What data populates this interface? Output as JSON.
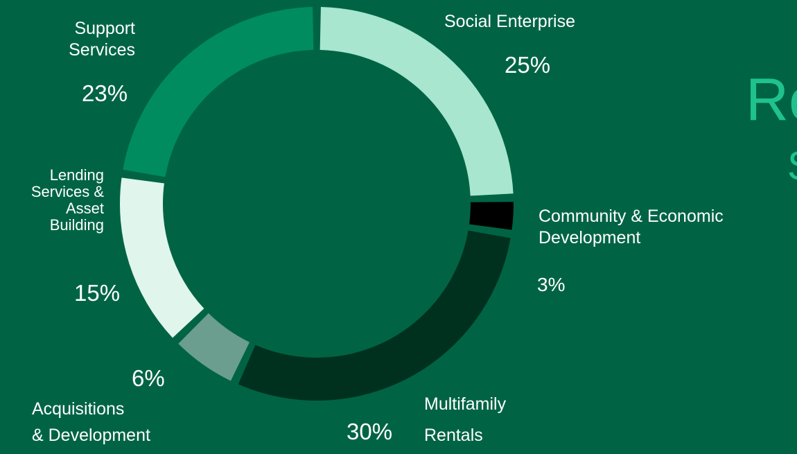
{
  "heading": {
    "line1": "Re",
    "line2": "S"
  },
  "chart_data": {
    "type": "pie",
    "donut": true,
    "title": "",
    "slices": [
      {
        "label": "Social Enterprise",
        "value": 25,
        "pct_text": "25%",
        "color": "#a8e6cf"
      },
      {
        "label": "Community & Economic Development",
        "label_lines": [
          "Community & Economic",
          "Development"
        ],
        "value": 3,
        "pct_text": "3%",
        "color": "#000000"
      },
      {
        "label": "Multifamily Rentals",
        "label_lines": [
          "Multifamily",
          "Rentals"
        ],
        "value": 30,
        "pct_text": "30%",
        "color": "#00311f"
      },
      {
        "label": "Acquisitions & Development",
        "label_lines": [
          "Acquisitions",
          "& Development"
        ],
        "value": 6,
        "pct_text": "6%",
        "color": "#6b9e8e"
      },
      {
        "label": "Lending Services & Asset Building",
        "label_lines": [
          "Lending",
          "Services &",
          "Asset",
          "Building"
        ],
        "value": 15,
        "pct_text": "15%",
        "color": "#e0f5ec"
      },
      {
        "label": "Support Services",
        "label_lines": [
          "Support",
          "Services"
        ],
        "value": 23,
        "pct_text": "23%",
        "color": "#008c5f"
      }
    ]
  }
}
